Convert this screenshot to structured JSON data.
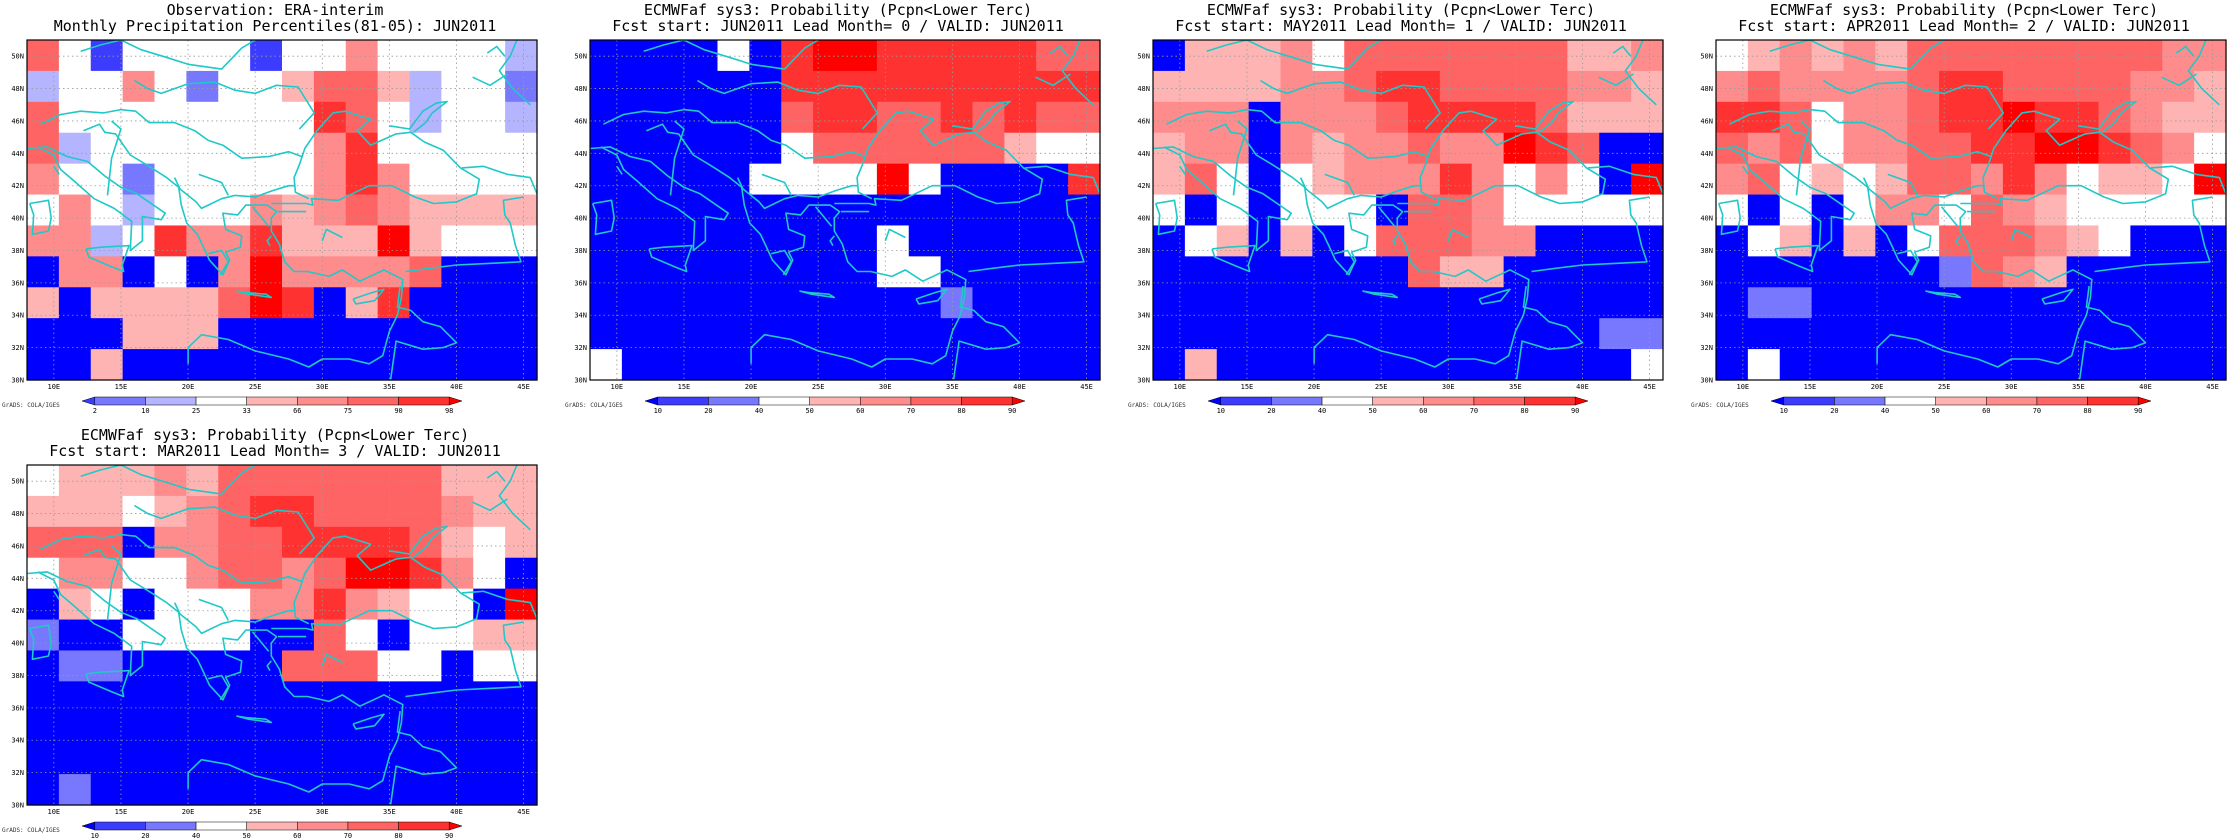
{
  "grads_label": "GrADS: COLA/IGES",
  "lon_ticks": [
    "10E",
    "15E",
    "20E",
    "25E",
    "30E",
    "35E",
    "40E",
    "45E"
  ],
  "lat_ticks": [
    "30N",
    "32N",
    "34N",
    "36N",
    "38N",
    "40N",
    "42N",
    "44N",
    "46N",
    "48N",
    "50N"
  ],
  "colors": {
    "land_outline": "#20c8c8",
    "grid": "#9a9a9a",
    "blue": [
      "#0000ff",
      "#3c3cff",
      "#7878ff",
      "#b4b4ff"
    ],
    "white": "#ffffff",
    "red": [
      "#ffb4b4",
      "#ff8c8c",
      "#ff6464",
      "#ff3232",
      "#ff0000",
      "#dc0000",
      "#a00000"
    ]
  },
  "obs_palette": [
    0,
    0,
    1,
    2,
    3,
    4,
    5,
    6,
    7,
    8,
    9,
    10
  ],
  "prob_palette": [
    0,
    1,
    2,
    4,
    5,
    6,
    7,
    8,
    9,
    10
  ],
  "panels": [
    {
      "id": "obs",
      "title1": "Observation: ERA-interim",
      "title2": "Monthly Precipitation Percentiles(81-05): JUN2011",
      "colorbar_labels": [
        "2",
        "10",
        "25",
        "33",
        "66",
        "75",
        "90",
        "98"
      ],
      "colorbar_classes": [
        1,
        2,
        3,
        4,
        5,
        6,
        7,
        8,
        9
      ],
      "grid": [
        [
          7,
          4,
          1,
          4,
          4,
          4,
          4,
          1,
          4,
          4,
          6,
          4,
          4,
          4,
          4,
          3
        ],
        [
          3,
          4,
          4,
          6,
          4,
          2,
          4,
          4,
          5,
          7,
          7,
          5,
          3,
          4,
          4,
          2
        ],
        [
          7,
          4,
          4,
          4,
          4,
          4,
          4,
          4,
          4,
          8,
          7,
          4,
          3,
          4,
          4,
          3
        ],
        [
          7,
          3,
          4,
          4,
          4,
          4,
          4,
          4,
          4,
          6,
          8,
          4,
          4,
          4,
          4,
          4
        ],
        [
          6,
          4,
          4,
          2,
          4,
          4,
          4,
          4,
          4,
          6,
          8,
          6,
          4,
          4,
          4,
          4
        ],
        [
          4,
          6,
          4,
          3,
          4,
          4,
          4,
          6,
          5,
          6,
          7,
          6,
          5,
          5,
          5,
          5
        ],
        [
          6,
          6,
          3,
          4,
          8,
          6,
          6,
          8,
          5,
          5,
          5,
          9,
          5,
          4,
          4,
          4
        ],
        [
          0,
          6,
          6,
          0,
          4,
          0,
          6,
          9,
          6,
          6,
          6,
          6,
          7,
          0,
          0,
          0
        ],
        [
          5,
          0,
          5,
          5,
          5,
          5,
          7,
          9,
          8,
          0,
          5,
          8,
          0,
          0,
          0,
          0
        ],
        [
          0,
          0,
          0,
          5,
          5,
          5,
          0,
          0,
          0,
          0,
          0,
          0,
          0,
          0,
          0,
          0
        ],
        [
          0,
          0,
          5,
          0,
          0,
          0,
          0,
          0,
          0,
          0,
          0,
          0,
          0,
          0,
          0,
          0
        ]
      ]
    },
    {
      "id": "lead0",
      "title1": "ECMWFaf sys3: Probability (Pcpn<Lower Terc)",
      "title2": "Fcst start: JUN2011   Lead Month= 0 / VALID: JUN2011",
      "colorbar_labels": [
        "10",
        "20",
        "40",
        "50",
        "60",
        "70",
        "80",
        "90"
      ],
      "colorbar_classes": [
        0,
        1,
        2,
        4,
        5,
        6,
        7,
        8,
        9
      ],
      "grid": [
        [
          0,
          0,
          0,
          0,
          4,
          0,
          8,
          9,
          9,
          8,
          8,
          8,
          8,
          8,
          7,
          7
        ],
        [
          0,
          0,
          0,
          0,
          0,
          0,
          8,
          8,
          8,
          8,
          8,
          8,
          8,
          8,
          8,
          8
        ],
        [
          0,
          0,
          0,
          0,
          0,
          0,
          7,
          8,
          8,
          7,
          7,
          8,
          7,
          8,
          7,
          7
        ],
        [
          0,
          0,
          0,
          0,
          0,
          0,
          4,
          7,
          7,
          7,
          7,
          7,
          7,
          5,
          4,
          4
        ],
        [
          0,
          0,
          0,
          0,
          0,
          4,
          4,
          4,
          4,
          9,
          4,
          0,
          0,
          0,
          0,
          8
        ],
        [
          0,
          0,
          0,
          0,
          0,
          0,
          0,
          0,
          0,
          0,
          0,
          0,
          0,
          0,
          0,
          0
        ],
        [
          0,
          0,
          0,
          0,
          0,
          0,
          0,
          0,
          0,
          4,
          0,
          0,
          0,
          0,
          0,
          0
        ],
        [
          0,
          0,
          0,
          0,
          0,
          0,
          0,
          0,
          0,
          4,
          4,
          0,
          0,
          0,
          0,
          0
        ],
        [
          0,
          0,
          0,
          0,
          0,
          0,
          0,
          0,
          0,
          0,
          0,
          2,
          0,
          0,
          0,
          0
        ],
        [
          0,
          0,
          0,
          0,
          0,
          0,
          0,
          0,
          0,
          0,
          0,
          0,
          0,
          0,
          0,
          0
        ],
        [
          4,
          0,
          0,
          0,
          0,
          0,
          0,
          0,
          0,
          0,
          0,
          0,
          0,
          0,
          0,
          0
        ]
      ]
    },
    {
      "id": "lead1",
      "title1": "ECMWFaf sys3: Probability (Pcpn<Lower Terc)",
      "title2": "Fcst start: MAY2011   Lead Month= 1 / VALID: JUN2011",
      "colorbar_labels": [
        "10",
        "20",
        "40",
        "50",
        "60",
        "70",
        "80",
        "90"
      ],
      "colorbar_classes": [
        0,
        1,
        2,
        4,
        5,
        6,
        7,
        8,
        9
      ],
      "grid": [
        [
          0,
          5,
          5,
          5,
          6,
          4,
          7,
          7,
          7,
          7,
          7,
          7,
          7,
          5,
          5,
          6
        ],
        [
          5,
          5,
          5,
          5,
          6,
          6,
          7,
          8,
          8,
          7,
          7,
          7,
          7,
          6,
          6,
          5
        ],
        [
          6,
          6,
          6,
          0,
          6,
          6,
          6,
          7,
          8,
          8,
          8,
          8,
          7,
          5,
          5,
          5
        ],
        [
          5,
          6,
          6,
          0,
          6,
          5,
          6,
          6,
          7,
          6,
          6,
          9,
          8,
          7,
          0,
          0
        ],
        [
          5,
          7,
          4,
          0,
          4,
          5,
          6,
          6,
          6,
          8,
          6,
          4,
          6,
          4,
          0,
          9
        ],
        [
          4,
          0,
          4,
          0,
          4,
          4,
          4,
          0,
          7,
          7,
          6,
          4,
          4,
          4,
          4,
          4
        ],
        [
          0,
          4,
          5,
          0,
          5,
          0,
          4,
          7,
          7,
          7,
          6,
          6,
          0,
          0,
          0,
          0
        ],
        [
          0,
          0,
          0,
          0,
          0,
          0,
          0,
          0,
          7,
          5,
          5,
          0,
          0,
          0,
          0,
          0
        ],
        [
          0,
          0,
          0,
          0,
          0,
          0,
          0,
          0,
          0,
          0,
          0,
          0,
          0,
          0,
          0,
          0
        ],
        [
          0,
          0,
          0,
          0,
          0,
          0,
          0,
          0,
          0,
          0,
          0,
          0,
          0,
          0,
          2,
          2
        ],
        [
          0,
          5,
          0,
          0,
          0,
          0,
          0,
          0,
          0,
          0,
          0,
          0,
          0,
          0,
          0,
          4
        ]
      ]
    },
    {
      "id": "lead2",
      "title1": "ECMWFaf sys3: Probability (Pcpn<Lower Terc)",
      "title2": "Fcst start: APR2011   Lead Month= 2 / VALID: JUN2011",
      "colorbar_labels": [
        "10",
        "20",
        "40",
        "50",
        "60",
        "70",
        "80",
        "90"
      ],
      "colorbar_classes": [
        0,
        1,
        2,
        4,
        5,
        6,
        7,
        8,
        9
      ],
      "grid": [
        [
          4,
          5,
          6,
          5,
          6,
          5,
          7,
          7,
          7,
          7,
          7,
          7,
          7,
          7,
          6,
          6
        ],
        [
          6,
          7,
          6,
          6,
          6,
          6,
          7,
          8,
          8,
          7,
          7,
          7,
          7,
          6,
          6,
          5
        ],
        [
          8,
          8,
          7,
          4,
          6,
          6,
          7,
          8,
          8,
          9,
          8,
          8,
          7,
          6,
          5,
          5
        ],
        [
          7,
          6,
          7,
          4,
          6,
          6,
          7,
          7,
          8,
          8,
          9,
          9,
          8,
          7,
          6,
          4
        ],
        [
          6,
          7,
          4,
          5,
          4,
          5,
          7,
          7,
          6,
          8,
          6,
          4,
          5,
          5,
          4,
          9
        ],
        [
          4,
          0,
          4,
          0,
          4,
          6,
          6,
          4,
          7,
          6,
          5,
          4,
          4,
          4,
          4,
          4
        ],
        [
          0,
          4,
          5,
          0,
          5,
          0,
          4,
          7,
          7,
          7,
          6,
          5,
          4,
          0,
          0,
          0
        ],
        [
          0,
          0,
          0,
          0,
          0,
          0,
          0,
          2,
          7,
          6,
          5,
          0,
          0,
          0,
          0,
          0
        ],
        [
          0,
          2,
          2,
          0,
          0,
          0,
          0,
          0,
          0,
          0,
          0,
          0,
          0,
          0,
          0,
          0
        ],
        [
          0,
          0,
          0,
          0,
          0,
          0,
          0,
          0,
          0,
          0,
          0,
          0,
          0,
          0,
          0,
          0
        ],
        [
          0,
          4,
          0,
          0,
          0,
          0,
          0,
          0,
          0,
          0,
          0,
          0,
          0,
          0,
          0,
          0
        ]
      ]
    },
    {
      "id": "lead3",
      "title1": "ECMWFaf sys3: Probability (Pcpn<Lower Terc)",
      "title2": "Fcst start: MAR2011   Lead Month= 3 / VALID: JUN2011",
      "colorbar_labels": [
        "10",
        "20",
        "40",
        "50",
        "60",
        "70",
        "80",
        "90"
      ],
      "colorbar_classes": [
        0,
        1,
        2,
        4,
        5,
        6,
        7,
        8,
        9
      ],
      "grid": [
        [
          4,
          5,
          5,
          5,
          6,
          5,
          7,
          7,
          7,
          7,
          7,
          7,
          7,
          5,
          5,
          5
        ],
        [
          5,
          5,
          5,
          4,
          5,
          6,
          7,
          8,
          8,
          7,
          7,
          7,
          7,
          6,
          5,
          5
        ],
        [
          7,
          7,
          7,
          0,
          6,
          6,
          7,
          7,
          8,
          8,
          8,
          8,
          7,
          5,
          4,
          5
        ],
        [
          4,
          6,
          6,
          4,
          4,
          6,
          7,
          7,
          6,
          7,
          9,
          9,
          8,
          6,
          4,
          0
        ],
        [
          0,
          5,
          4,
          0,
          4,
          4,
          4,
          6,
          6,
          8,
          6,
          5,
          4,
          4,
          0,
          9
        ],
        [
          2,
          0,
          0,
          4,
          4,
          4,
          4,
          0,
          0,
          7,
          4,
          0,
          4,
          4,
          5,
          5
        ],
        [
          0,
          2,
          2,
          0,
          0,
          0,
          0,
          0,
          7,
          7,
          7,
          4,
          4,
          0,
          4,
          4
        ],
        [
          0,
          0,
          0,
          0,
          0,
          0,
          0,
          0,
          0,
          0,
          0,
          0,
          0,
          0,
          0,
          0
        ],
        [
          0,
          0,
          0,
          0,
          0,
          0,
          0,
          0,
          0,
          0,
          0,
          0,
          0,
          0,
          0,
          0
        ],
        [
          0,
          0,
          0,
          0,
          0,
          0,
          0,
          0,
          0,
          0,
          0,
          0,
          0,
          0,
          0,
          0
        ],
        [
          0,
          2,
          0,
          0,
          0,
          0,
          0,
          0,
          0,
          0,
          0,
          0,
          0,
          0,
          0,
          0
        ]
      ]
    }
  ]
}
